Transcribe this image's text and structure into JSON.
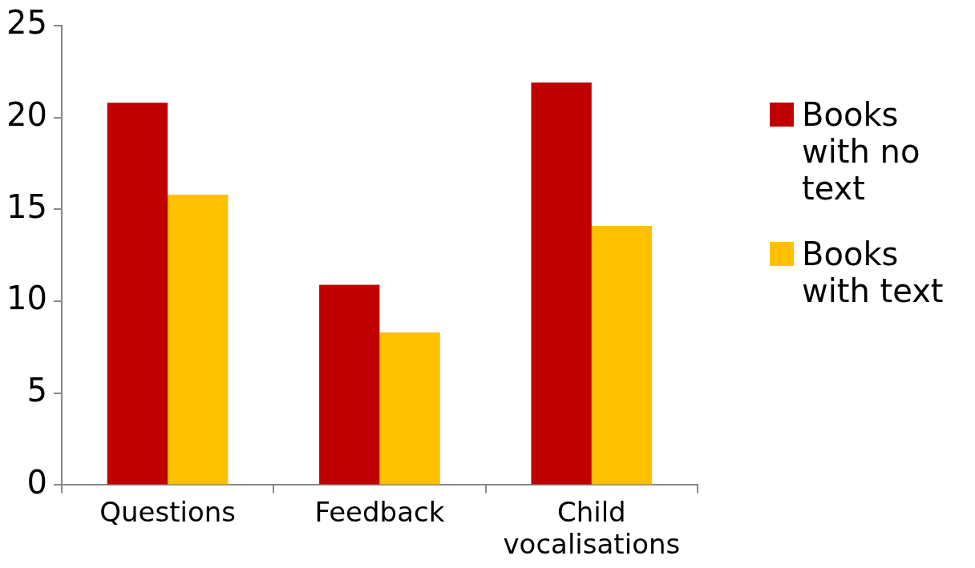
{
  "chart_data": {
    "type": "bar",
    "categories": [
      "Questions",
      "Feedback",
      "Child vocalisations"
    ],
    "series": [
      {
        "name": "Books with no text",
        "color": "#c00000",
        "values": [
          20.8,
          10.9,
          21.9
        ]
      },
      {
        "name": "Books with text",
        "color": "#ffc000",
        "values": [
          15.8,
          8.3,
          14.1
        ]
      }
    ],
    "ylim": [
      0,
      25
    ],
    "yticks": [
      0,
      5,
      10,
      15,
      20,
      25
    ],
    "grid": false,
    "legend": "right"
  }
}
